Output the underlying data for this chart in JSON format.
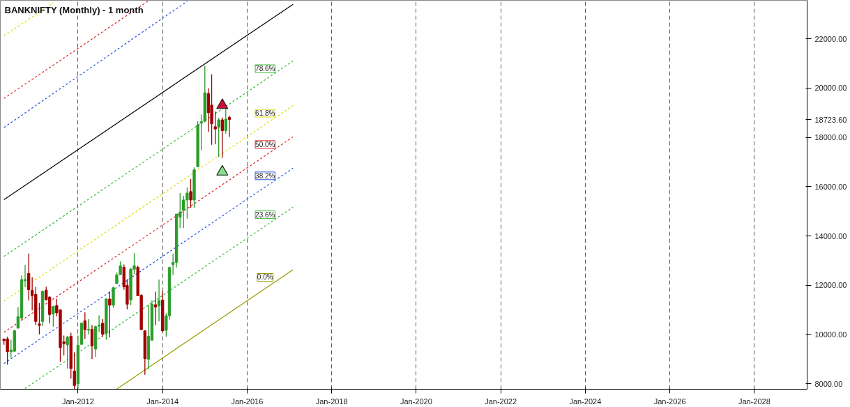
{
  "chart_data": {
    "type": "candlestick",
    "title": "BANKNIFTY (Monthly) - 1 month",
    "x": [
      "2010-04",
      "2010-05",
      "2010-06",
      "2010-07",
      "2010-08",
      "2010-09",
      "2010-10",
      "2010-11",
      "2010-12",
      "2011-01",
      "2011-02",
      "2011-03",
      "2011-04",
      "2011-05",
      "2011-06",
      "2011-07",
      "2011-08",
      "2011-09",
      "2011-10",
      "2011-11",
      "2011-12",
      "2012-01",
      "2012-02",
      "2012-03",
      "2012-04",
      "2012-05",
      "2012-06",
      "2012-07",
      "2012-08",
      "2012-09",
      "2012-10",
      "2012-11",
      "2012-12",
      "2013-01",
      "2013-02",
      "2013-03",
      "2013-04",
      "2013-05",
      "2013-06",
      "2013-07",
      "2013-08",
      "2013-09",
      "2013-10",
      "2013-11",
      "2013-12",
      "2014-01",
      "2014-02",
      "2014-03",
      "2014-04",
      "2014-05",
      "2014-06",
      "2014-07",
      "2014-08",
      "2014-09",
      "2014-10",
      "2014-11",
      "2014-12",
      "2015-01",
      "2015-02",
      "2015-03",
      "2015-04",
      "2015-05",
      "2015-06",
      "2015-07",
      "2015-08"
    ],
    "ohlc": [
      [
        9820,
        9820,
        9580,
        9750
      ],
      [
        9820,
        9910,
        8780,
        9300
      ],
      [
        9300,
        9790,
        9060,
        9370
      ],
      [
        9320,
        10200,
        9300,
        10150
      ],
      [
        10260,
        11110,
        10240,
        10720
      ],
      [
        10670,
        12400,
        10570,
        12230
      ],
      [
        12180,
        12820,
        11940,
        12230
      ],
      [
        12480,
        13290,
        11380,
        11820
      ],
      [
        11800,
        12320,
        10980,
        11580
      ],
      [
        11630,
        11920,
        10390,
        10530
      ],
      [
        10430,
        11280,
        10010,
        10370
      ],
      [
        10530,
        11790,
        10340,
        11750
      ],
      [
        11800,
        11940,
        11380,
        11410
      ],
      [
        11520,
        11550,
        10450,
        10810
      ],
      [
        10840,
        11170,
        10320,
        11140
      ],
      [
        11170,
        11450,
        10740,
        10880
      ],
      [
        11000,
        11020,
        8900,
        9470
      ],
      [
        9700,
        9960,
        9150,
        9630
      ],
      [
        9580,
        9940,
        8620,
        9890
      ],
      [
        9930,
        10070,
        8210,
        8620
      ],
      [
        8520,
        9280,
        7770,
        7930
      ],
      [
        8000,
        9960,
        7770,
        9560
      ],
      [
        9600,
        10470,
        9600,
        10470
      ],
      [
        10560,
        10900,
        9820,
        10200
      ],
      [
        10180,
        10620,
        10010,
        10210
      ],
      [
        10210,
        10380,
        9000,
        9540
      ],
      [
        9410,
        10360,
        9090,
        10320
      ],
      [
        10340,
        10780,
        10100,
        10380
      ],
      [
        10460,
        10620,
        9910,
        10010
      ],
      [
        10050,
        11470,
        9790,
        11440
      ],
      [
        11440,
        11740,
        9880,
        11190
      ],
      [
        11190,
        11940,
        11090,
        11900
      ],
      [
        12070,
        12510,
        12040,
        12420
      ],
      [
        12430,
        12960,
        12420,
        12790
      ],
      [
        12730,
        12840,
        11820,
        11940
      ],
      [
        11990,
        12250,
        11020,
        11230
      ],
      [
        11400,
        12700,
        11190,
        12650
      ],
      [
        12650,
        13300,
        12460,
        12790
      ],
      [
        12730,
        12790,
        11570,
        11570
      ],
      [
        11590,
        11630,
        10170,
        10200
      ],
      [
        10150,
        10170,
        8370,
        9020
      ],
      [
        9000,
        11210,
        8590,
        9930
      ],
      [
        9770,
        11380,
        9750,
        11230
      ],
      [
        11210,
        11740,
        10380,
        11110
      ],
      [
        11170,
        12230,
        10530,
        11380
      ],
      [
        11400,
        11750,
        10100,
        10150
      ],
      [
        10170,
        10860,
        9910,
        10760
      ],
      [
        10760,
        12750,
        10600,
        12720
      ],
      [
        12840,
        13270,
        12420,
        12930
      ],
      [
        12930,
        14890,
        12720,
        14890
      ],
      [
        14760,
        15740,
        14320,
        14970
      ],
      [
        15040,
        15630,
        14320,
        15460
      ],
      [
        15460,
        15960,
        14700,
        15740
      ],
      [
        15800,
        16310,
        15140,
        15460
      ],
      [
        15460,
        16780,
        15140,
        16680
      ],
      [
        16810,
        18650,
        16790,
        18510
      ],
      [
        18580,
        18930,
        17470,
        18630
      ],
      [
        18650,
        20910,
        18620,
        19810
      ],
      [
        19780,
        19990,
        18220,
        19000
      ],
      [
        19310,
        20560,
        17700,
        18550
      ],
      [
        18430,
        19050,
        17730,
        18340
      ],
      [
        18410,
        18790,
        17200,
        18710
      ],
      [
        18710,
        18810,
        17170,
        18270
      ],
      [
        18270,
        19210,
        18150,
        18740
      ],
      [
        18810,
        18880,
        18020,
        18723.6
      ]
    ],
    "colors": [
      "#a00000",
      "#a00000",
      "#2a9d2a",
      "#2a9d2a",
      "#2a9d2a",
      "#2a9d2a",
      "#2a9d2a",
      "#a00000",
      "#a00000",
      "#a00000",
      "#a00000",
      "#2a9d2a",
      "#a00000",
      "#a00000",
      "#2a9d2a",
      "#a00000",
      "#a00000",
      "#a00000",
      "#2a9d2a",
      "#a00000",
      "#a00000",
      "#2a9d2a",
      "#2a9d2a",
      "#a00000",
      "#2a9d2a",
      "#a00000",
      "#2a9d2a",
      "#2a9d2a",
      "#a00000",
      "#2a9d2a",
      "#a00000",
      "#2a9d2a",
      "#2a9d2a",
      "#2a9d2a",
      "#a00000",
      "#a00000",
      "#2a9d2a",
      "#2a9d2a",
      "#a00000",
      "#a00000",
      "#a00000",
      "#2a9d2a",
      "#2a9d2a",
      "#a00000",
      "#2a9d2a",
      "#a00000",
      "#2a9d2a",
      "#2a9d2a",
      "#2a9d2a",
      "#2a9d2a",
      "#2a9d2a",
      "#2a9d2a",
      "#2a9d2a",
      "#a00000",
      "#2a9d2a",
      "#2a9d2a",
      "#2a9d2a",
      "#2a9d2a",
      "#a00000",
      "#a00000",
      "#a00000",
      "#2a9d2a",
      "#a00000",
      "#2a9d2a",
      "#a00000"
    ],
    "series": [
      {
        "type": "line",
        "color": "#000000",
        "line_style": "solid",
        "x": [
          "2010-04",
          "2017-02"
        ],
        "values": [
          15470,
          23400
        ]
      },
      {
        "type": "line",
        "name": "78.6%",
        "color": "#33bb33",
        "line_style": "dashed",
        "x": [
          "2010-04",
          "2017-02"
        ],
        "values": [
          13170,
          21100
        ]
      },
      {
        "type": "line",
        "name": "61.8%",
        "color": "#dddd00",
        "line_style": "dashed",
        "x": [
          "2010-04",
          "2017-02"
        ],
        "values": [
          11360,
          19290
        ]
      },
      {
        "type": "line",
        "name": "50.0%",
        "color": "#dd2222",
        "line_style": "dashed",
        "x": [
          "2010-04",
          "2017-02"
        ],
        "values": [
          10090,
          18020
        ]
      },
      {
        "type": "line",
        "name": "38.2%",
        "color": "#2255dd",
        "line_style": "dashed",
        "x": [
          "2010-04",
          "2017-02"
        ],
        "values": [
          8820,
          16750
        ]
      },
      {
        "type": "line",
        "name": "23.6%",
        "color": "#33bb33",
        "line_style": "dashed",
        "x": [
          "2010-10",
          "2017-02"
        ],
        "values": [
          7810,
          15170
        ]
      },
      {
        "type": "line",
        "name": "0.0%",
        "color": "#999900",
        "line_style": "solid",
        "x": [
          "2012-12",
          "2017-02"
        ],
        "values": [
          7790,
          12630
        ]
      },
      {
        "type": "line",
        "color": "#2255dd",
        "line_style": "dashed",
        "x": [
          "2010-04",
          "2014-08"
        ],
        "values": [
          18400,
          23520
        ]
      },
      {
        "type": "line",
        "color": "#dd2222",
        "line_style": "dashed",
        "x": [
          "2010-04",
          "2013-09"
        ],
        "values": [
          19580,
          23540
        ]
      },
      {
        "type": "line",
        "color": "#dddd00",
        "line_style": "dashed",
        "x": [
          "2010-04",
          "2011-06"
        ],
        "values": [
          22120,
          23460
        ]
      },
      {
        "type": "scatter",
        "marker": "triangle",
        "color": "#cc1133",
        "x": [
          "2015-06"
        ],
        "values": [
          19300
        ]
      },
      {
        "type": "scatter",
        "marker": "triangle",
        "color": "#88dd88",
        "x": [
          "2015-06"
        ],
        "values": [
          16600
        ]
      }
    ],
    "xlim": [
      "2010-03",
      "2029-04"
    ],
    "ylim": [
      7780,
      23560
    ],
    "xticks": [
      {
        "value": "2012-01",
        "label": "Jan-2012"
      },
      {
        "value": "2014-01",
        "label": "Jan-2014"
      },
      {
        "value": "2016-01",
        "label": "Jan-2016"
      },
      {
        "value": "2018-01",
        "label": "Jan-2018"
      },
      {
        "value": "2020-01",
        "label": "Jan-2020"
      },
      {
        "value": "2022-01",
        "label": "Jan-2022"
      },
      {
        "value": "2024-01",
        "label": "Jan-2024"
      },
      {
        "value": "2026-01",
        "label": "Jan-2026"
      },
      {
        "value": "2028-01",
        "label": "Jan-2028"
      }
    ],
    "yticks": [
      {
        "value": 8000,
        "label": "8000.00"
      },
      {
        "value": 10000,
        "label": "10000.00"
      },
      {
        "value": 12000,
        "label": "12000.00"
      },
      {
        "value": 14000,
        "label": "14000.00"
      },
      {
        "value": 16000,
        "label": "16000.00"
      },
      {
        "value": 18000,
        "label": "18000.00"
      },
      {
        "value": 18723.6,
        "label": "18723.60"
      },
      {
        "value": 20000,
        "label": "20000.00"
      },
      {
        "value": 22000,
        "label": "22000.00"
      }
    ],
    "grid": "x"
  }
}
